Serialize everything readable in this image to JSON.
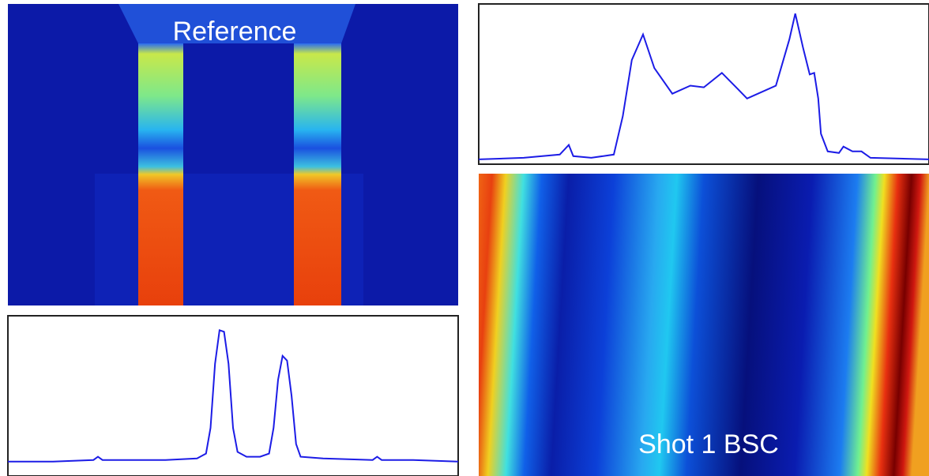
{
  "chart_data": [
    {
      "type": "image",
      "title": "Reference"
    },
    {
      "type": "line",
      "xlim": [
        0,
        100
      ],
      "ylim": [
        0,
        1
      ],
      "x": [
        0,
        10,
        19,
        20,
        21,
        35,
        42,
        44,
        45,
        46,
        47,
        48,
        49,
        50,
        51,
        53,
        56,
        58,
        59,
        60,
        61,
        62,
        63,
        64,
        65,
        70,
        81,
        82,
        83,
        90,
        100
      ],
      "series": [
        {
          "color": "#1c1ce6",
          "values": [
            0.09,
            0.09,
            0.1,
            0.12,
            0.1,
            0.1,
            0.11,
            0.14,
            0.3,
            0.7,
            0.91,
            0.9,
            0.7,
            0.3,
            0.15,
            0.12,
            0.12,
            0.14,
            0.3,
            0.6,
            0.75,
            0.72,
            0.5,
            0.2,
            0.12,
            0.11,
            0.1,
            0.12,
            0.1,
            0.1,
            0.09
          ]
        }
      ]
    },
    {
      "type": "line",
      "xlim": [
        0,
        100
      ],
      "ylim": [
        0,
        1
      ],
      "x": [
        0,
        10,
        18,
        20,
        21,
        25,
        30,
        32,
        34,
        36.5,
        39,
        43,
        47,
        50,
        54,
        57.5,
        59.6,
        62,
        66,
        69,
        70.3,
        72,
        73.5,
        74.5,
        75.4,
        76,
        77.5,
        80,
        81,
        83,
        85,
        87,
        100
      ],
      "series": [
        {
          "color": "#1c1ce6",
          "values": [
            0.03,
            0.04,
            0.06,
            0.12,
            0.05,
            0.04,
            0.06,
            0.3,
            0.65,
            0.81,
            0.6,
            0.44,
            0.49,
            0.48,
            0.57,
            0.47,
            0.41,
            0.44,
            0.49,
            0.78,
            0.94,
            0.73,
            0.56,
            0.57,
            0.41,
            0.19,
            0.08,
            0.07,
            0.11,
            0.08,
            0.08,
            0.04,
            0.03
          ]
        }
      ]
    },
    {
      "type": "image",
      "title": "Shot 1 BSC"
    }
  ]
}
